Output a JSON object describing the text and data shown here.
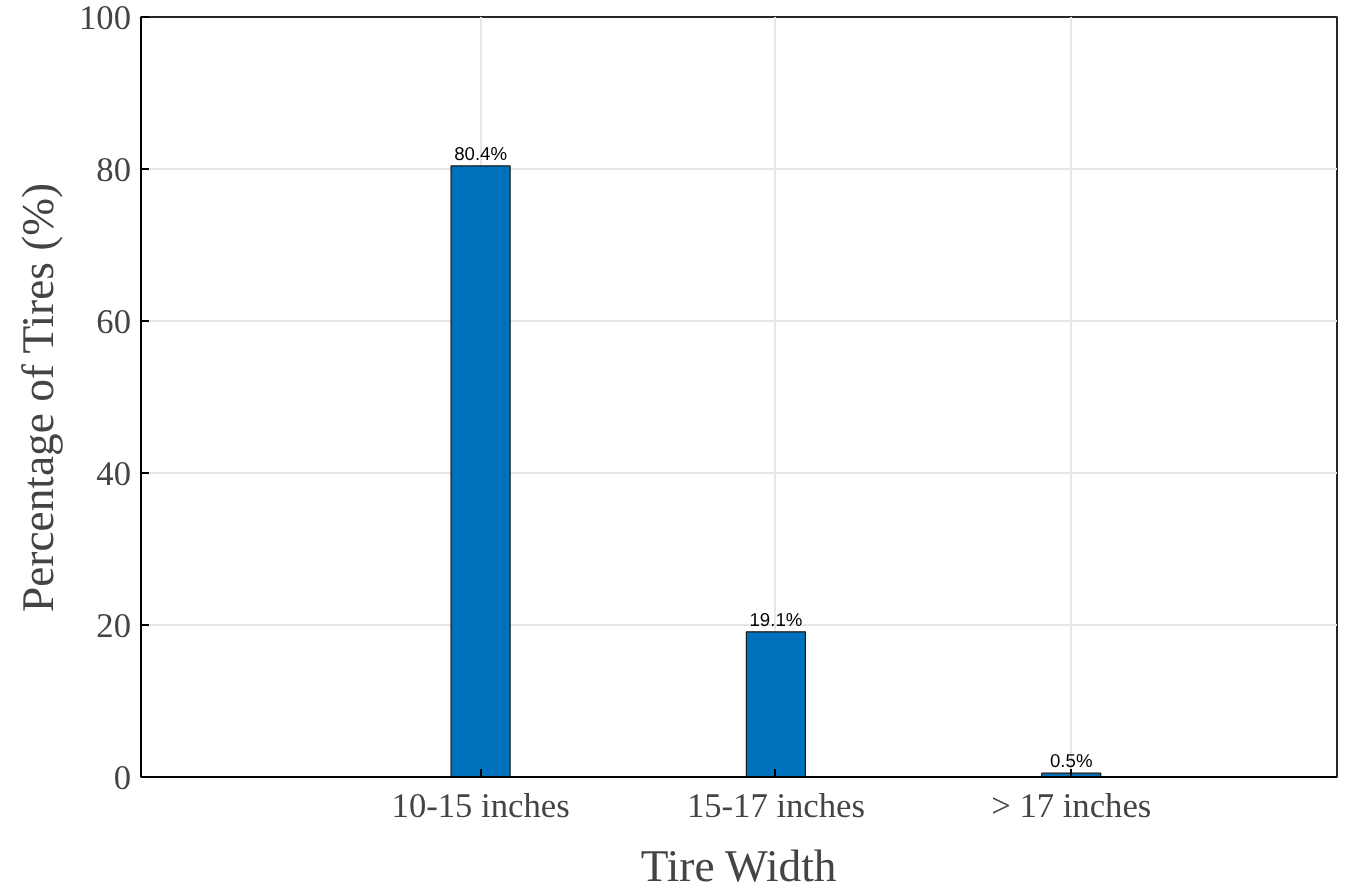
{
  "chart_data": {
    "type": "bar",
    "xlabel": "Tire Width",
    "ylabel": "Percentage of Tires (%)",
    "categories": [
      "10-15 inches",
      "15-17 inches",
      "> 17 inches"
    ],
    "values": [
      80.4,
      19.1,
      0.5
    ],
    "value_labels": [
      "80.4%",
      "19.1%",
      "0.5%"
    ],
    "color": "#0072bd",
    "ylim": [
      0,
      100
    ],
    "yticks": [
      0,
      20,
      40,
      60,
      80,
      100
    ],
    "grid": true
  }
}
